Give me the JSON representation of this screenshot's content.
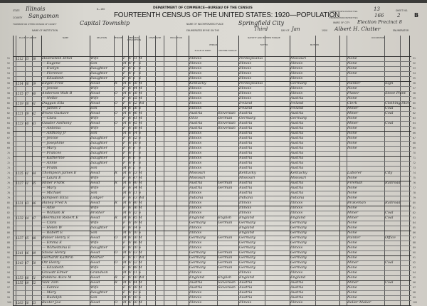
{
  "header": {
    "state_label": "State",
    "state": "Illinois",
    "county_label": "County",
    "county": "Sangamon",
    "township_label": "Township or other division of county",
    "township": "Capital Township",
    "institution_label": "Name of institution",
    "form_no": "8—160",
    "department": "DEPARTMENT OF COMMERCE—BUREAU OF THE CENSUS",
    "title": "FOURTEENTH CENSUS OF THE UNITED STATES: 1920—POPULATION",
    "place_label": "Name of incorporated place",
    "place": "Springfield City",
    "enumerated_label": "Enumerated by me on the",
    "day": "Third",
    "day_of_label": "day of",
    "month": "Jan",
    "year": "1920",
    "enumerator": "Albert H. Clutter",
    "enumerator_label": "Enumerator",
    "supervisor_label": "Supervisor's District No.",
    "supervisor_district": "13",
    "ed_label": "Enumeration District No.",
    "enumeration_district": "166",
    "sheet_label": "Sheet No.",
    "sheet_no": "2",
    "sheet_side": "B",
    "ward_label": "Ward of city",
    "ward": "Election Precinct 8"
  },
  "columns": {
    "place_of_abode": "Place of abode",
    "name": "Name",
    "relation": "Relation",
    "tenure": "Tenure",
    "personal": "Personal description",
    "citizenship": "Citizenship",
    "education": "Education",
    "nativity": "Nativity and mother tongue",
    "person": "Person",
    "father": "Father",
    "mother": "Mother",
    "occupation": "Occupation",
    "place_of_birth": "Place of birth",
    "mother_tongue": "Mother tongue"
  },
  "rows": [
    [
      "51",
      "1212",
      "33",
      "38",
      "Holenstein Ethel",
      "Wife",
      "",
      "F",
      "W",
      "31",
      "M",
      "Illinois",
      "",
      "Pennsylvania",
      "Missouri",
      "None",
      ""
    ],
    [
      "52",
      "",
      "",
      "",
      "— Eugene",
      "Son",
      "",
      "M",
      "W",
      "9",
      "S",
      "Illinois",
      "",
      "Illinois",
      "Illinois",
      "None",
      ""
    ],
    [
      "53",
      "",
      "",
      "",
      "— Evelyn",
      "Daughter",
      "",
      "F",
      "W",
      "5",
      "S",
      "Illinois",
      "",
      "Illinois",
      "Illinois",
      "None",
      ""
    ],
    [
      "54",
      "",
      "",
      "",
      "— Florence",
      "Daughter",
      "",
      "F",
      "W",
      "3",
      "S",
      "Illinois",
      "",
      "Illinois",
      "Illinois",
      "None",
      ""
    ],
    [
      "55",
      "",
      "",
      "",
      "— Elizabeth",
      "Daughter",
      "",
      "F",
      "W",
      "1",
      "S",
      "Illinois",
      "",
      "Illinois",
      "Illinois",
      "",
      ""
    ],
    [
      "56",
      "1214",
      "36",
      "39",
      "Edgell Fred",
      "Head",
      "R",
      "M",
      "W",
      "58",
      "M",
      "Kentucky",
      "",
      "Pennsylvania",
      "Germany",
      "Painter",
      "Sign"
    ],
    [
      "57",
      "",
      "",
      "",
      "— Jennie",
      "Wife",
      "",
      "F",
      "W",
      "44",
      "M",
      "Illinois",
      "",
      "Illinois",
      "Illinois",
      "None",
      ""
    ],
    [
      "58",
      "1215",
      "37",
      "40",
      "Anderson Walt B",
      "Head",
      "O",
      "M",
      "W",
      "28",
      "M",
      "Illinois",
      "",
      "Illinois",
      "Illinois",
      "Planer",
      "Stove Plant"
    ],
    [
      "59",
      "",
      "",
      "",
      "— Nellie",
      "Wife",
      "",
      "F",
      "W",
      "25",
      "M",
      "Illinois",
      "",
      "Illinois",
      "Austria",
      "None",
      ""
    ],
    [
      "60",
      "1219",
      "38",
      "41",
      "Duggan Ella",
      "Head",
      "O",
      "F",
      "W",
      "52",
      "Wd",
      "Illinois",
      "",
      "Ireland",
      "Ireland",
      "Clerk",
      "Clothing Store"
    ],
    [
      "61",
      "",
      "",
      "",
      "— James T",
      "Son",
      "",
      "M",
      "W",
      "26",
      "S",
      "Illinois",
      "",
      "Ireland",
      "Ireland",
      "Miner",
      "Coal"
    ],
    [
      "62",
      "1221",
      "39",
      "42",
      "Bruno Gustave",
      "Head",
      "O",
      "M",
      "W",
      "46",
      "M",
      "Austria",
      "Slovenian",
      "Austria",
      "Austria",
      "Miner",
      "Coal"
    ],
    [
      "63",
      "",
      "",
      "",
      "— Clara",
      "Wife",
      "",
      "F",
      "W",
      "41",
      "M",
      "Ohio",
      "German",
      "Germany",
      "Germany",
      "None",
      ""
    ],
    [
      "64",
      "1223",
      "40",
      "43",
      "Gauder Anthony",
      "Head",
      "O",
      "M",
      "W",
      "45",
      "M",
      "Austria",
      "Slovenian",
      "Austria",
      "Austria",
      "Miner",
      "Coal"
    ],
    [
      "65",
      "",
      "",
      "",
      "— Antonia",
      "Wife",
      "",
      "F",
      "W",
      "38",
      "M",
      "Austria",
      "Slovenian",
      "Austria",
      "Austria",
      "None",
      ""
    ],
    [
      "66",
      "",
      "",
      "",
      "— Anthony Jr",
      "Son",
      "",
      "M",
      "W",
      "14",
      "S",
      "Illinois",
      "",
      "Austria",
      "Austria",
      "None",
      ""
    ],
    [
      "67",
      "",
      "",
      "",
      "— Jennie",
      "Daughter",
      "",
      "F",
      "W",
      "12",
      "S",
      "Illinois",
      "",
      "Austria",
      "Austria",
      "None",
      ""
    ],
    [
      "68",
      "",
      "",
      "",
      "— Josephine",
      "Daughter",
      "",
      "F",
      "W",
      "10",
      "S",
      "Illinois",
      "",
      "Austria",
      "Austria",
      "None",
      ""
    ],
    [
      "69",
      "",
      "",
      "",
      "— Mary",
      "Daughter",
      "",
      "F",
      "W",
      "8",
      "S",
      "Illinois",
      "",
      "Austria",
      "Austria",
      "None",
      ""
    ],
    [
      "70",
      "",
      "",
      "",
      "— Frances",
      "Daughter",
      "",
      "F",
      "W",
      "7",
      "S",
      "Illinois",
      "",
      "Austria",
      "Austria",
      "",
      ""
    ],
    [
      "71",
      "",
      "",
      "",
      "— Katherine",
      "Daughter",
      "",
      "F",
      "W",
      "6",
      "S",
      "Illinois",
      "",
      "Austria",
      "Austria",
      "",
      ""
    ],
    [
      "72",
      "",
      "",
      "",
      "— Annie",
      "Daughter",
      "",
      "F",
      "W",
      "4",
      "S",
      "Illinois",
      "",
      "Austria",
      "Austria",
      "",
      ""
    ],
    [
      "73",
      "",
      "",
      "",
      "— Frank",
      "Son",
      "",
      "M",
      "W",
      "2",
      "S",
      "Illinois",
      "",
      "Austria",
      "Austria",
      "",
      ""
    ],
    [
      "74",
      "1225",
      "41",
      "44",
      "Thompson James E",
      "Head",
      "R",
      "M",
      "W",
      "53",
      "M",
      "Missouri",
      "",
      "Kentucky",
      "Kentucky",
      "Laborer",
      "City"
    ],
    [
      "75",
      "",
      "",
      "",
      "— Laura E",
      "Wife",
      "",
      "F",
      "W",
      "47",
      "M",
      "Missouri",
      "",
      "Missouri",
      "Missouri",
      "None",
      ""
    ],
    [
      "76",
      "1227",
      "41",
      "45",
      "Miller Frank",
      "Head",
      "R",
      "M",
      "W",
      "40",
      "M",
      "Austria",
      "German",
      "Austria",
      "Austria",
      "Fireman",
      "Railroad"
    ],
    [
      "77",
      "",
      "",
      "",
      "— Mary",
      "Wife",
      "",
      "F",
      "W",
      "34",
      "M",
      "Austria",
      "German",
      "Austria",
      "Austria",
      "None",
      ""
    ],
    [
      "78",
      "",
      "",
      "",
      "— Michael",
      "Son",
      "",
      "M",
      "W",
      "11",
      "S",
      "Illinois",
      "",
      "Austria",
      "Austria",
      "None",
      ""
    ],
    [
      "79",
      "",
      "",
      "",
      "Sampson Eliza",
      "Lodger",
      "",
      "F",
      "W",
      "63",
      "Wd",
      "Indiana",
      "",
      "Indiana",
      "Indiana",
      "None",
      ""
    ],
    [
      "80",
      "1231",
      "43",
      "46",
      "Haney Fred A",
      "Head",
      "R",
      "M",
      "W",
      "40",
      "M",
      "Illinois",
      "",
      "Illinois",
      "Illinois",
      "Brakeman",
      "Railroad"
    ],
    [
      "81",
      "",
      "",
      "",
      "— Allie",
      "Wife",
      "",
      "F",
      "W",
      "36",
      "M",
      "Illinois",
      "",
      "Illinois",
      "Illinois",
      "None",
      ""
    ],
    [
      "82",
      "",
      "",
      "",
      "— William H",
      "Brother",
      "",
      "M",
      "W",
      "32",
      "S",
      "Illinois",
      "",
      "Illinois",
      "Illinois",
      "Miner",
      "Coal"
    ],
    [
      "83",
      "1233",
      "44",
      "47",
      "Heermann Robert E",
      "Head",
      "R",
      "M",
      "W",
      "45",
      "M",
      "England",
      "English",
      "England",
      "England",
      "Miner",
      "Coal"
    ],
    [
      "84",
      "",
      "",
      "",
      "— Clara",
      "Wife",
      "",
      "F",
      "W",
      "39",
      "M",
      "Germany",
      "German",
      "Germany",
      "Germany",
      "None",
      ""
    ],
    [
      "85",
      "",
      "",
      "",
      "— Helen W",
      "Daughter",
      "",
      "F",
      "W",
      "14",
      "S",
      "Illinois",
      "",
      "England",
      "Germany",
      "None",
      ""
    ],
    [
      "86",
      "",
      "",
      "",
      "— Robert E",
      "Son",
      "",
      "M",
      "W",
      "10",
      "S",
      "Illinois",
      "",
      "England",
      "Germany",
      "None",
      ""
    ],
    [
      "87",
      "1237",
      "45",
      "48",
      "Bulser Henry E",
      "Head",
      "O",
      "M",
      "W",
      "50",
      "M",
      "Germany",
      "German",
      "Germany",
      "Germany",
      "Painter",
      "Office"
    ],
    [
      "88",
      "",
      "",
      "",
      "— Emma E",
      "Wife",
      "",
      "F",
      "W",
      "46",
      "M",
      "Illinois",
      "",
      "Germany",
      "Germany",
      "None",
      ""
    ],
    [
      "89",
      "",
      "",
      "",
      "— Wilhelmina E",
      "Daughter",
      "",
      "F",
      "W",
      "20",
      "S",
      "Illinois",
      "",
      "Germany",
      "Illinois",
      "None",
      ""
    ],
    [
      "90",
      "1241",
      "46",
      "49",
      "Stoole Henry",
      "Head",
      "O",
      "M",
      "W",
      "63",
      "M",
      "Germany",
      "German",
      "Germany",
      "Germany",
      "None",
      ""
    ],
    [
      "91",
      "",
      "",
      "",
      "Gerhardt Kathrin",
      "Mother",
      "",
      "F",
      "W",
      "87",
      "Wd",
      "Germany",
      "German",
      "Germany",
      "Germany",
      "None",
      ""
    ],
    [
      "92",
      "1243",
      "47",
      "50",
      "Ott Henry",
      "Head",
      "O",
      "M",
      "W",
      "52",
      "M",
      "Germany",
      "German",
      "Germany",
      "Germany",
      "Miner",
      "Coal"
    ],
    [
      "93",
      "",
      "",
      "",
      "— Elizabeth",
      "Wife",
      "",
      "F",
      "W",
      "48",
      "M",
      "Germany",
      "German",
      "Germany",
      "Germany",
      "None",
      ""
    ],
    [
      "94",
      "",
      "",
      "",
      "Gravatt Elmer",
      "Grandson",
      "",
      "M",
      "W",
      "11",
      "S",
      "Illinois",
      "",
      "Illinois",
      "Illinois",
      "None",
      ""
    ],
    [
      "95",
      "1253",
      "48",
      "51",
      "Robbins Alice M",
      "Head",
      "R",
      "F",
      "W",
      "60",
      "Wd",
      "England",
      "English",
      "England",
      "England",
      "None",
      ""
    ],
    [
      "96",
      "1255",
      "49",
      "52",
      "Volk Tom",
      "Head",
      "R",
      "M",
      "W",
      "44",
      "M",
      "Austria",
      "Slovenian",
      "Austria",
      "Austria",
      "Miner",
      "Coal"
    ],
    [
      "97",
      "",
      "",
      "",
      "— Fannie",
      "Wife",
      "",
      "F",
      "W",
      "38",
      "M",
      "Austria",
      "Slovenian",
      "Austria",
      "Austria",
      "None",
      ""
    ],
    [
      "98",
      "",
      "",
      "",
      "— Mary",
      "Daughter",
      "",
      "F",
      "W",
      "12",
      "S",
      "Illinois",
      "",
      "Austria",
      "Austria",
      "None",
      ""
    ],
    [
      "99",
      "",
      "",
      "",
      "— Rudolph",
      "Son",
      "",
      "M",
      "W",
      "10",
      "S",
      "Illinois",
      "",
      "Austria",
      "Austria",
      "None",
      ""
    ],
    [
      "100",
      "1263",
      "50",
      "53",
      "Baxter Joe",
      "Head",
      "O",
      "M",
      "W",
      "50",
      "M",
      "Illinois",
      "",
      "Illinois",
      "Illinois",
      "Roller Maker",
      ""
    ]
  ]
}
